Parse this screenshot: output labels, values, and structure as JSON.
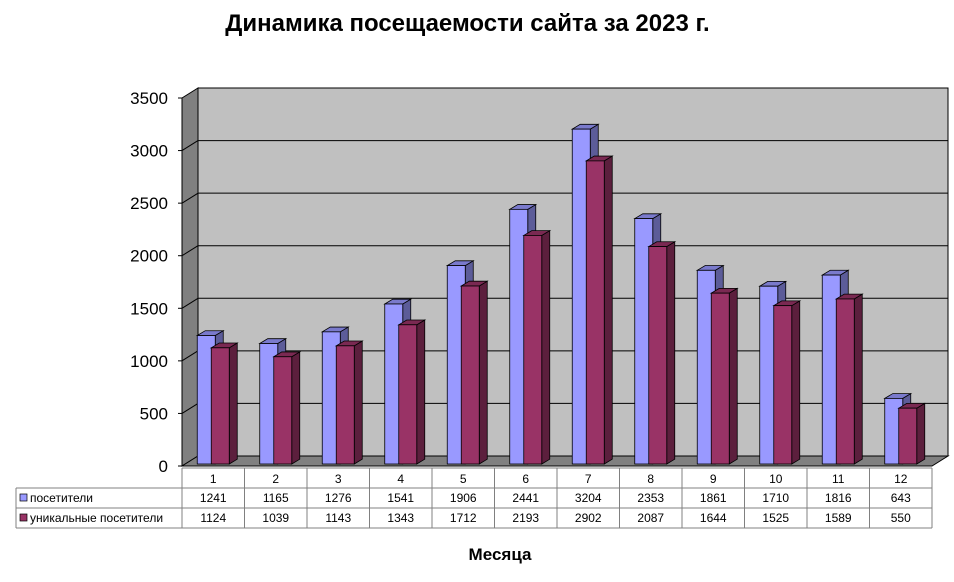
{
  "chart_data": {
    "type": "bar",
    "title": "Динамика посещаемости сайта за 2023 г.",
    "xlabel": "Месяца",
    "ylabel": "",
    "ylim": [
      0,
      3500
    ],
    "yticks": [
      0,
      500,
      1000,
      1500,
      2000,
      2500,
      3000,
      3500
    ],
    "categories": [
      "1",
      "2",
      "3",
      "4",
      "5",
      "6",
      "7",
      "8",
      "9",
      "10",
      "11",
      "12"
    ],
    "series": [
      {
        "name": "посетители",
        "color": "#9999ff",
        "values": [
          1241,
          1165,
          1276,
          1541,
          1906,
          2441,
          3204,
          2353,
          1861,
          1710,
          1816,
          643
        ]
      },
      {
        "name": "уникальные посетители",
        "color": "#993366",
        "values": [
          1124,
          1039,
          1143,
          1343,
          1712,
          2193,
          2902,
          2087,
          1644,
          1525,
          1589,
          550
        ]
      }
    ],
    "grid": true,
    "legend": "data-table",
    "plot_background": "#c0c0c0"
  }
}
